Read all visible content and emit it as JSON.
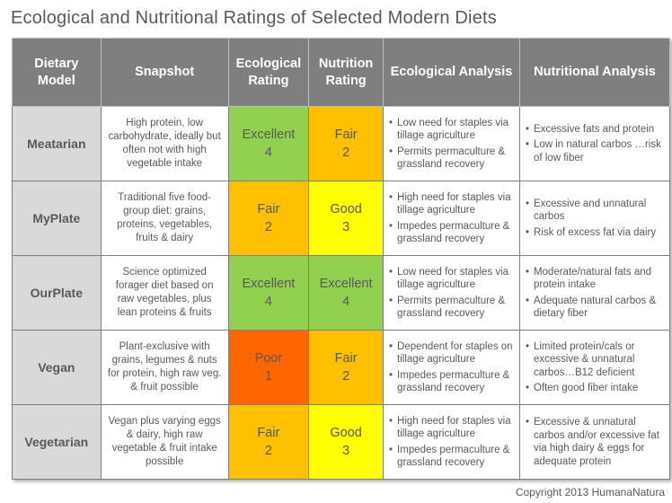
{
  "title": "Ecological and Nutritional Ratings of Selected Modern Diets",
  "headers": [
    "Dietary Model",
    "Snapshot",
    "Ecological Rating",
    "Nutrition Rating",
    "Ecological Analysis",
    "Nutritional Analysis"
  ],
  "colors": {
    "header": "#7f7f7f",
    "model": "#d9d9d9",
    "Excellent": "#92d050",
    "Good": "#ffff00",
    "Fair": "#ffc000",
    "Poor": "#ff6600"
  },
  "rows": [
    {
      "model": "Meatarian",
      "snapshot": "High protein, low carbohydrate, ideally but often not with high vegetable intake",
      "eco": {
        "label": "Excellent",
        "score": "4"
      },
      "nut": {
        "label": "Fair",
        "score": "2"
      },
      "eco_analysis": [
        "Low need for staples via tillage agriculture",
        "Permits permaculture & grassland recovery"
      ],
      "nut_analysis": [
        "Excessive fats and protein",
        "Low in natural carbos …risk of low fiber"
      ]
    },
    {
      "model": "MyPlate",
      "snapshot": "Traditional five food-group diet: grains, proteins, vegetables, fruits & dairy",
      "eco": {
        "label": "Fair",
        "score": "2"
      },
      "nut": {
        "label": "Good",
        "score": "3"
      },
      "eco_analysis": [
        "High need for staples via tillage agriculture",
        "Impedes permaculture & grassland recovery"
      ],
      "nut_analysis": [
        "Excessive and unnatural carbos",
        "Risk of excess fat via dairy"
      ]
    },
    {
      "model": "OurPlate",
      "snapshot": "Science optimized forager diet based on raw vegetables, plus lean proteins & fruits",
      "eco": {
        "label": "Excellent",
        "score": "4"
      },
      "nut": {
        "label": "Excellent",
        "score": "4"
      },
      "eco_analysis": [
        "Low need for staples via tillage agriculture",
        "Permits permaculture & grassland recovery"
      ],
      "nut_analysis": [
        "Moderate/natural fats and protein intake",
        "Adequate natural carbos & dietary fiber"
      ]
    },
    {
      "model": "Vegan",
      "snapshot": "Plant-exclusive with grains, legumes & nuts for protein, high raw veg. & fruit possible",
      "eco": {
        "label": "Poor",
        "score": "1"
      },
      "nut": {
        "label": "Fair",
        "score": "2"
      },
      "eco_analysis": [
        "Dependent for staples on tillage agriculture",
        "Impedes permaculture & grassland recovery"
      ],
      "nut_analysis": [
        "Limited protein/cals or excessive & unnatural carbos…B12 deficient",
        "Often good fiber intake"
      ]
    },
    {
      "model": "Vegetarian",
      "snapshot": "Vegan plus varying eggs & dairy, high raw vegetable & fruit intake possible",
      "eco": {
        "label": "Fair",
        "score": "2"
      },
      "nut": {
        "label": "Good",
        "score": "3"
      },
      "eco_analysis": [
        "High need for staples via tillage agriculture",
        "Impedes permaculture & grassland recovery"
      ],
      "nut_analysis": [
        "Excessive & unnatural carbos and/or excessive fat via high dairy & eggs for adequate protein"
      ]
    }
  ],
  "copyright": "Copyright 2013 HumanaNatura"
}
